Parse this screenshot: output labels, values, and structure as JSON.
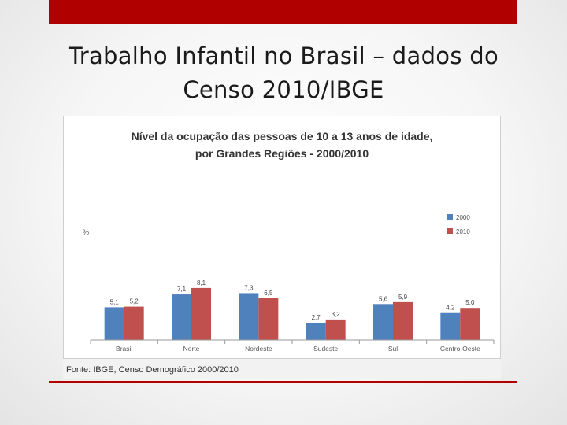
{
  "slide": {
    "title_line1": "Trabalho Infantil no Brasil – dados do",
    "title_line2": "Censo 2010/IBGE",
    "source": "Fonte: IBGE, Censo Demográfico 2000/2010"
  },
  "colors": {
    "accent": "#b00000",
    "series_2000": "#4f81bd",
    "series_2010": "#c0504d"
  },
  "chart_data": {
    "type": "bar",
    "title_line1": "Nível da ocupação das pessoas de 10 a 13 anos de idade,",
    "title_line2": "por Grandes Regiões - 2000/2010",
    "ylabel": "%",
    "xlabel": "",
    "categories": [
      "Brasil",
      "Norte",
      "Nordeste",
      "Sudeste",
      "Sul",
      "Centro-Oeste"
    ],
    "series": [
      {
        "name": "2000",
        "values": [
          5.1,
          7.1,
          7.3,
          2.7,
          5.6,
          4.2
        ],
        "labels": [
          "5,1",
          "7,1",
          "7,3",
          "2,7",
          "5,6",
          "4,2"
        ]
      },
      {
        "name": "2010",
        "values": [
          5.2,
          8.1,
          6.5,
          3.2,
          5.9,
          5.0
        ],
        "labels": [
          "5,2",
          "8,1",
          "6,5",
          "3,2",
          "5,9",
          "5,0"
        ]
      }
    ],
    "ylim": [
      0,
      25
    ],
    "legend": "top-right",
    "grid": false
  }
}
